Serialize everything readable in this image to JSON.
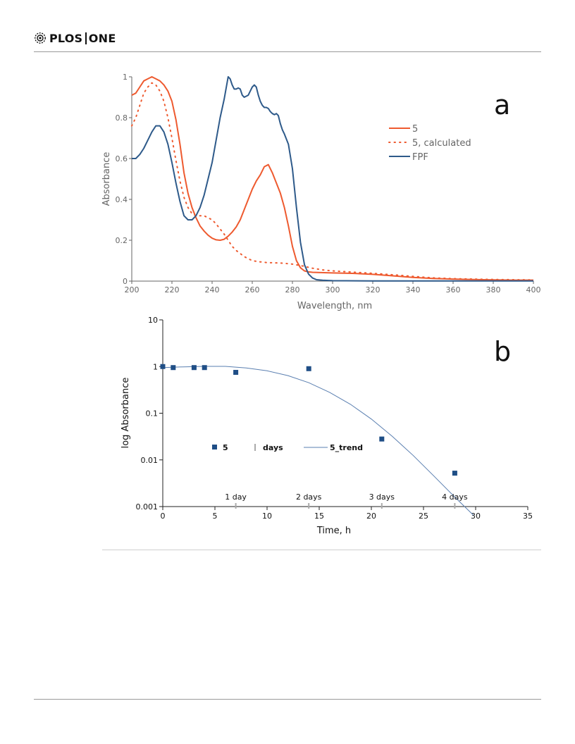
{
  "journal": {
    "name_part1": "PLOS",
    "name_part2": "ONE"
  },
  "chart_data": [
    {
      "panel": "a",
      "type": "line",
      "xlabel": "Wavelength, nm",
      "ylabel": "Absorbance",
      "xlim": [
        200,
        400
      ],
      "ylim": [
        0,
        1
      ],
      "xticks": [
        "200",
        "220",
        "240",
        "260",
        "280",
        "300",
        "320",
        "340",
        "360",
        "380",
        "400"
      ],
      "yticks": [
        "0",
        "0.2",
        "0.4",
        "0.6",
        "0.8",
        "1"
      ],
      "legend_position": "right",
      "series": [
        {
          "name": "5",
          "color": "#ee5a2f",
          "style": "solid",
          "points": [
            [
              200,
              0.91
            ],
            [
              202,
              0.92
            ],
            [
              204,
              0.95
            ],
            [
              206,
              0.98
            ],
            [
              208,
              0.99
            ],
            [
              210,
              1.0
            ],
            [
              212,
              0.99
            ],
            [
              214,
              0.98
            ],
            [
              216,
              0.96
            ],
            [
              218,
              0.93
            ],
            [
              220,
              0.88
            ],
            [
              222,
              0.79
            ],
            [
              224,
              0.67
            ],
            [
              226,
              0.53
            ],
            [
              228,
              0.43
            ],
            [
              230,
              0.36
            ],
            [
              232,
              0.31
            ],
            [
              234,
              0.27
            ],
            [
              236,
              0.245
            ],
            [
              238,
              0.225
            ],
            [
              240,
              0.21
            ],
            [
              242,
              0.202
            ],
            [
              244,
              0.2
            ],
            [
              246,
              0.205
            ],
            [
              248,
              0.22
            ],
            [
              250,
              0.24
            ],
            [
              252,
              0.265
            ],
            [
              254,
              0.3
            ],
            [
              256,
              0.35
            ],
            [
              258,
              0.4
            ],
            [
              260,
              0.45
            ],
            [
              262,
              0.49
            ],
            [
              264,
              0.52
            ],
            [
              266,
              0.56
            ],
            [
              268,
              0.57
            ],
            [
              270,
              0.53
            ],
            [
              272,
              0.48
            ],
            [
              274,
              0.43
            ],
            [
              276,
              0.36
            ],
            [
              278,
              0.27
            ],
            [
              280,
              0.17
            ],
            [
              282,
              0.1
            ],
            [
              284,
              0.065
            ],
            [
              286,
              0.05
            ],
            [
              288,
              0.045
            ],
            [
              290,
              0.043
            ],
            [
              300,
              0.04
            ],
            [
              310,
              0.038
            ],
            [
              320,
              0.033
            ],
            [
              330,
              0.026
            ],
            [
              340,
              0.018
            ],
            [
              350,
              0.013
            ],
            [
              360,
              0.01
            ],
            [
              370,
              0.008
            ],
            [
              380,
              0.006
            ],
            [
              390,
              0.005
            ],
            [
              400,
              0.005
            ]
          ]
        },
        {
          "name": "5, calculated",
          "color": "#ee5a2f",
          "style": "dotted",
          "points": [
            [
              200,
              0.76
            ],
            [
              202,
              0.8
            ],
            [
              204,
              0.86
            ],
            [
              206,
              0.92
            ],
            [
              208,
              0.95
            ],
            [
              210,
              0.97
            ],
            [
              212,
              0.96
            ],
            [
              214,
              0.93
            ],
            [
              216,
              0.88
            ],
            [
              218,
              0.8
            ],
            [
              220,
              0.7
            ],
            [
              222,
              0.59
            ],
            [
              224,
              0.49
            ],
            [
              226,
              0.41
            ],
            [
              228,
              0.36
            ],
            [
              230,
              0.33
            ],
            [
              232,
              0.32
            ],
            [
              234,
              0.32
            ],
            [
              236,
              0.32
            ],
            [
              238,
              0.31
            ],
            [
              240,
              0.3
            ],
            [
              242,
              0.28
            ],
            [
              244,
              0.255
            ],
            [
              246,
              0.23
            ],
            [
              248,
              0.2
            ],
            [
              250,
              0.17
            ],
            [
              252,
              0.15
            ],
            [
              254,
              0.135
            ],
            [
              256,
              0.12
            ],
            [
              258,
              0.11
            ],
            [
              260,
              0.1
            ],
            [
              262,
              0.097
            ],
            [
              264,
              0.094
            ],
            [
              266,
              0.092
            ],
            [
              268,
              0.09
            ],
            [
              270,
              0.09
            ],
            [
              275,
              0.088
            ],
            [
              280,
              0.083
            ],
            [
              285,
              0.074
            ],
            [
              290,
              0.063
            ],
            [
              295,
              0.055
            ],
            [
              300,
              0.05
            ],
            [
              310,
              0.044
            ],
            [
              320,
              0.038
            ],
            [
              330,
              0.031
            ],
            [
              340,
              0.023
            ],
            [
              350,
              0.016
            ],
            [
              360,
              0.012
            ],
            [
              370,
              0.01
            ],
            [
              380,
              0.008
            ],
            [
              390,
              0.007
            ],
            [
              400,
              0.006
            ]
          ]
        },
        {
          "name": "FPF",
          "color": "#2e5a8a",
          "style": "solid",
          "points": [
            [
              200,
              0.6
            ],
            [
              202,
              0.6
            ],
            [
              204,
              0.62
            ],
            [
              206,
              0.65
            ],
            [
              208,
              0.69
            ],
            [
              210,
              0.73
            ],
            [
              212,
              0.76
            ],
            [
              214,
              0.76
            ],
            [
              216,
              0.73
            ],
            [
              218,
              0.67
            ],
            [
              220,
              0.58
            ],
            [
              222,
              0.48
            ],
            [
              224,
              0.39
            ],
            [
              226,
              0.32
            ],
            [
              228,
              0.3
            ],
            [
              230,
              0.3
            ],
            [
              232,
              0.32
            ],
            [
              234,
              0.36
            ],
            [
              236,
              0.42
            ],
            [
              238,
              0.5
            ],
            [
              240,
              0.58
            ],
            [
              242,
              0.69
            ],
            [
              244,
              0.8
            ],
            [
              246,
              0.89
            ],
            [
              248,
              1.0
            ],
            [
              249,
              0.99
            ],
            [
              250,
              0.96
            ],
            [
              251,
              0.94
            ],
            [
              252,
              0.94
            ],
            [
              253,
              0.945
            ],
            [
              254,
              0.94
            ],
            [
              255,
              0.91
            ],
            [
              256,
              0.9
            ],
            [
              258,
              0.91
            ],
            [
              260,
              0.95
            ],
            [
              261,
              0.96
            ],
            [
              262,
              0.95
            ],
            [
              263,
              0.91
            ],
            [
              264,
              0.88
            ],
            [
              265,
              0.86
            ],
            [
              266,
              0.85
            ],
            [
              267,
              0.85
            ],
            [
              268,
              0.845
            ],
            [
              269,
              0.83
            ],
            [
              270,
              0.82
            ],
            [
              271,
              0.815
            ],
            [
              272,
              0.82
            ],
            [
              273,
              0.81
            ],
            [
              274,
              0.77
            ],
            [
              275,
              0.74
            ],
            [
              276,
              0.72
            ],
            [
              278,
              0.67
            ],
            [
              280,
              0.55
            ],
            [
              282,
              0.36
            ],
            [
              284,
              0.19
            ],
            [
              286,
              0.08
            ],
            [
              288,
              0.035
            ],
            [
              290,
              0.015
            ],
            [
              292,
              0.007
            ],
            [
              295,
              0.004
            ],
            [
              300,
              0.002
            ],
            [
              320,
              0.001
            ],
            [
              360,
              0.001
            ],
            [
              400,
              0.001
            ]
          ]
        }
      ]
    },
    {
      "panel": "b",
      "type": "scatter",
      "xlabel": "Time, h",
      "ylabel": "log Absorbance",
      "xlim": [
        0,
        35
      ],
      "ylim": [
        0.001,
        10
      ],
      "yscale": "log",
      "xticks": [
        "0",
        "5",
        "10",
        "15",
        "20",
        "25",
        "30",
        "35"
      ],
      "yticks": [
        "0.001",
        "0.01",
        "0.1",
        "1",
        "10"
      ],
      "legend_position": "center-left",
      "series": [
        {
          "name": "5",
          "color": "#1f4e86",
          "marker": "square",
          "points": [
            [
              0,
              1.0
            ],
            [
              1,
              0.95
            ],
            [
              3,
              0.95
            ],
            [
              4,
              0.95
            ],
            [
              7,
              0.75
            ],
            [
              14,
              0.9
            ],
            [
              21,
              0.028
            ],
            [
              28,
              0.0052
            ]
          ]
        },
        {
          "name": "days",
          "color": "#aaaaaa",
          "marker": "tick",
          "points": [
            [
              7,
              0.00105
            ],
            [
              14,
              0.00105
            ],
            [
              21,
              0.00105
            ],
            [
              28,
              0.00105
            ]
          ],
          "labels": [
            "1 day",
            "2 days",
            "3 days",
            "4 days"
          ]
        },
        {
          "name": "5_trend",
          "color": "#5a7fb0",
          "style": "solid",
          "points": [
            [
              0,
              0.95
            ],
            [
              2,
              0.985
            ],
            [
              4,
              1.01
            ],
            [
              6,
              1.01
            ],
            [
              8,
              0.93
            ],
            [
              10,
              0.81
            ],
            [
              12,
              0.64
            ],
            [
              14,
              0.45
            ],
            [
              16,
              0.28
            ],
            [
              18,
              0.155
            ],
            [
              20,
              0.075
            ],
            [
              22,
              0.032
            ],
            [
              24,
              0.0125
            ],
            [
              26,
              0.0045
            ],
            [
              28,
              0.0016
            ],
            [
              29.8,
              0.00065
            ]
          ]
        }
      ],
      "legend": [
        {
          "label": "5"
        },
        {
          "label": "days"
        },
        {
          "label": "5_trend"
        }
      ]
    }
  ]
}
